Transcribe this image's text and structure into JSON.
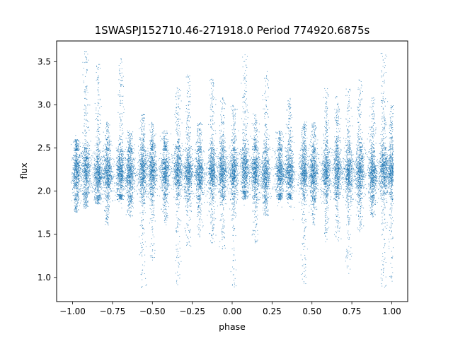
{
  "chart_data": {
    "type": "scatter",
    "title": "1SWASPJ152710.46-271918.0 Period 774920.6875s",
    "xlabel": "phase",
    "ylabel": "flux",
    "xlim": [
      -1.1,
      1.1
    ],
    "ylim": [
      0.72,
      3.74
    ],
    "xticks": [
      -1.0,
      -0.75,
      -0.5,
      -0.25,
      0.0,
      0.25,
      0.5,
      0.75,
      1.0
    ],
    "xtick_labels": [
      "−1.00",
      "−0.75",
      "−0.50",
      "−0.25",
      "0.00",
      "0.25",
      "0.50",
      "0.75",
      "1.00"
    ],
    "yticks": [
      1.0,
      1.5,
      2.0,
      2.5,
      3.0,
      3.5
    ],
    "ytick_labels": [
      "1.0",
      "1.5",
      "2.0",
      "2.5",
      "3.0",
      "3.5"
    ],
    "grid": false,
    "marker_color": "#1f77b4",
    "series_clusters": [
      {
        "x": -0.975,
        "center": 2.22,
        "spread": 0.13,
        "upper": 2.6,
        "lower": 1.75
      },
      {
        "x": -0.915,
        "center": 2.24,
        "spread": 0.14,
        "upper": 3.62,
        "lower": 1.8
      },
      {
        "x": -0.84,
        "center": 2.2,
        "spread": 0.13,
        "upper": 3.5,
        "lower": 1.85
      },
      {
        "x": -0.78,
        "center": 2.22,
        "spread": 0.13,
        "upper": 2.8,
        "lower": 1.6
      },
      {
        "x": -0.7,
        "center": 2.21,
        "spread": 0.13,
        "upper": 3.55,
        "lower": 1.9
      },
      {
        "x": -0.64,
        "center": 2.2,
        "spread": 0.13,
        "upper": 2.7,
        "lower": 1.7
      },
      {
        "x": -0.56,
        "center": 2.22,
        "spread": 0.14,
        "upper": 2.9,
        "lower": 0.88
      },
      {
        "x": -0.5,
        "center": 2.22,
        "spread": 0.13,
        "upper": 2.8,
        "lower": 1.2
      },
      {
        "x": -0.42,
        "center": 2.22,
        "spread": 0.13,
        "upper": 2.7,
        "lower": 1.6
      },
      {
        "x": -0.34,
        "center": 2.24,
        "spread": 0.13,
        "upper": 3.2,
        "lower": 0.9
      },
      {
        "x": -0.275,
        "center": 2.22,
        "spread": 0.13,
        "upper": 3.35,
        "lower": 1.35
      },
      {
        "x": -0.205,
        "center": 2.2,
        "spread": 0.13,
        "upper": 2.8,
        "lower": 1.45
      },
      {
        "x": -0.125,
        "center": 2.22,
        "spread": 0.13,
        "upper": 3.3,
        "lower": 1.4
      },
      {
        "x": -0.06,
        "center": 2.22,
        "spread": 0.13,
        "upper": 3.1,
        "lower": 1.3
      },
      {
        "x": 0.01,
        "center": 2.22,
        "spread": 0.13,
        "upper": 3.0,
        "lower": 0.88
      },
      {
        "x": 0.08,
        "center": 2.25,
        "spread": 0.14,
        "upper": 3.62,
        "lower": 1.9
      },
      {
        "x": 0.145,
        "center": 2.22,
        "spread": 0.13,
        "upper": 2.9,
        "lower": 1.4
      },
      {
        "x": 0.21,
        "center": 2.2,
        "spread": 0.13,
        "upper": 3.4,
        "lower": 1.7
      },
      {
        "x": 0.3,
        "center": 2.22,
        "spread": 0.13,
        "upper": 2.7,
        "lower": 1.9
      },
      {
        "x": 0.36,
        "center": 2.22,
        "spread": 0.13,
        "upper": 3.1,
        "lower": 1.9
      },
      {
        "x": 0.45,
        "center": 2.22,
        "spread": 0.13,
        "upper": 2.8,
        "lower": 0.9
      },
      {
        "x": 0.51,
        "center": 2.2,
        "spread": 0.13,
        "upper": 2.8,
        "lower": 1.6
      },
      {
        "x": 0.59,
        "center": 2.22,
        "spread": 0.13,
        "upper": 3.2,
        "lower": 1.4
      },
      {
        "x": 0.66,
        "center": 2.24,
        "spread": 0.14,
        "upper": 3.1,
        "lower": 1.4
      },
      {
        "x": 0.73,
        "center": 2.2,
        "spread": 0.13,
        "upper": 3.2,
        "lower": 1.0
      },
      {
        "x": 0.8,
        "center": 2.22,
        "spread": 0.14,
        "upper": 3.3,
        "lower": 1.5
      },
      {
        "x": 0.88,
        "center": 2.2,
        "spread": 0.13,
        "upper": 3.1,
        "lower": 1.7
      },
      {
        "x": 0.95,
        "center": 2.24,
        "spread": 0.14,
        "upper": 3.6,
        "lower": 0.88
      },
      {
        "x": 1.0,
        "center": 2.22,
        "spread": 0.13,
        "upper": 3.0,
        "lower": 0.95
      }
    ]
  }
}
